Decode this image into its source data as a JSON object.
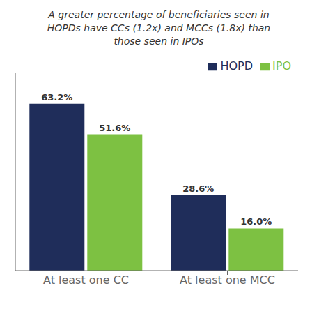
{
  "chart_data": {
    "type": "bar",
    "title": "A greater percentage of beneficiaries seen in\nHOPDs have CCs (1.2x) and MCCs (1.8x) than\nthose seen in IPOs",
    "categories": [
      "At least one CC",
      "At least one MCC"
    ],
    "series": [
      {
        "name": "HOPD",
        "color": "#1F2D5A",
        "values": [
          63.2,
          28.6
        ],
        "value_labels": [
          "63.2%",
          "28.6%"
        ]
      },
      {
        "name": "IPO",
        "color": "#7DC142",
        "values": [
          51.6,
          16.0
        ],
        "value_labels": [
          "51.6%",
          "16.0%"
        ]
      }
    ],
    "ylim": [
      0,
      75
    ],
    "grid": false,
    "legend": "upper right",
    "data_labels": true,
    "tick_labels": "x"
  }
}
